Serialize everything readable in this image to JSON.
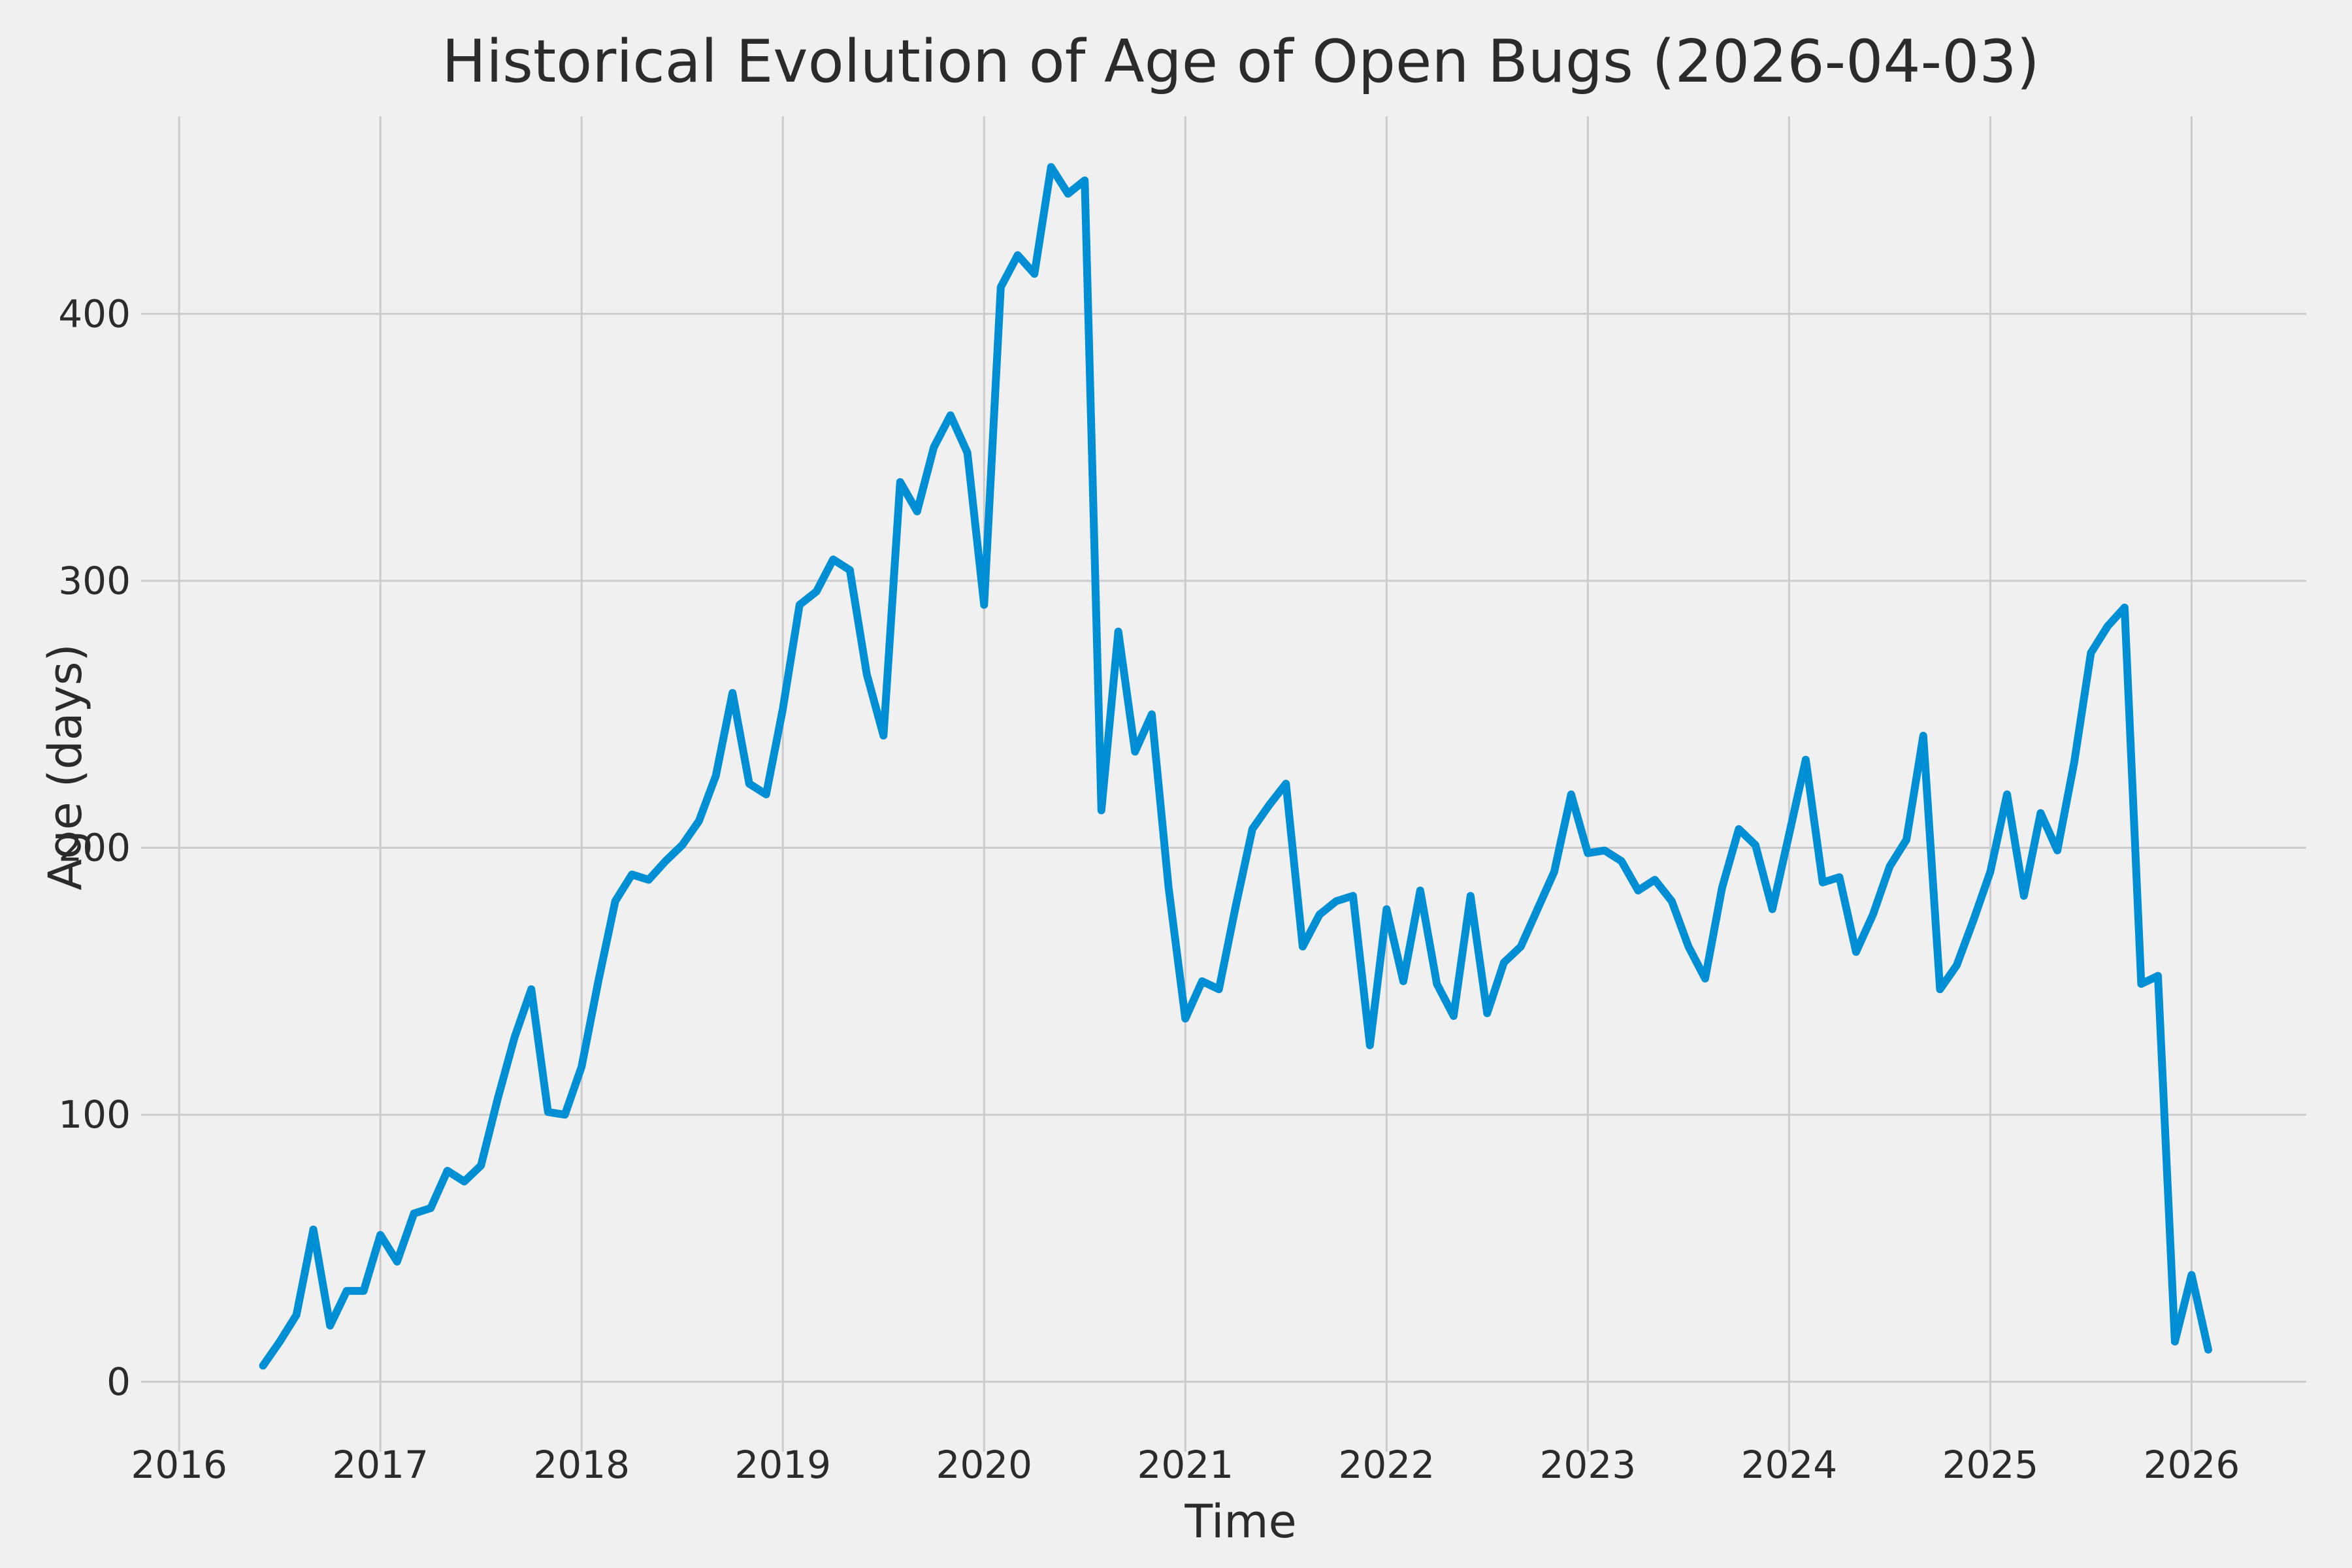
{
  "chart_data": {
    "type": "line",
    "title": "Historical Evolution of Age of Open Bugs (2026-04-03)",
    "xlabel": "Time",
    "ylabel": "Age (days)",
    "x_ticks": [
      2016,
      2017,
      2018,
      2019,
      2020,
      2021,
      2022,
      2023,
      2024,
      2025,
      2026
    ],
    "y_ticks": [
      0,
      100,
      200,
      300,
      400
    ],
    "xlim": [
      2015.98,
      2026.57
    ],
    "ylim": [
      -13.5,
      474
    ],
    "grid": true,
    "legend_position": "none",
    "colors": {
      "line": "#008fd5",
      "background": "#f0f0f0",
      "grid": "#cbcbcb",
      "text": "#2b2b2b"
    },
    "series": [
      {
        "name": "Age (days)",
        "x": [
          2016.417,
          2016.5,
          2016.583,
          2016.667,
          2016.75,
          2016.833,
          2016.917,
          2017.0,
          2017.083,
          2017.167,
          2017.25,
          2017.333,
          2017.417,
          2017.5,
          2017.583,
          2017.667,
          2017.75,
          2017.833,
          2017.917,
          2018.0,
          2018.083,
          2018.167,
          2018.25,
          2018.333,
          2018.417,
          2018.5,
          2018.583,
          2018.667,
          2018.75,
          2018.833,
          2018.917,
          2019.0,
          2019.083,
          2019.167,
          2019.25,
          2019.333,
          2019.417,
          2019.5,
          2019.583,
          2019.667,
          2019.75,
          2019.833,
          2019.917,
          2020.0,
          2020.083,
          2020.167,
          2020.25,
          2020.333,
          2020.417,
          2020.5,
          2020.583,
          2020.667,
          2020.75,
          2020.833,
          2020.917,
          2021.0,
          2021.083,
          2021.167,
          2021.25,
          2021.333,
          2021.417,
          2021.5,
          2021.583,
          2021.667,
          2021.75,
          2021.833,
          2021.917,
          2022.0,
          2022.083,
          2022.167,
          2022.25,
          2022.333,
          2022.417,
          2022.5,
          2022.583,
          2022.667,
          2022.75,
          2022.833,
          2022.917,
          2023.0,
          2023.083,
          2023.167,
          2023.25,
          2023.333,
          2023.417,
          2023.5,
          2023.583,
          2023.667,
          2023.75,
          2023.833,
          2023.917,
          2024.0,
          2024.083,
          2024.167,
          2024.25,
          2024.333,
          2024.417,
          2024.5,
          2024.583,
          2024.667,
          2024.75,
          2024.833,
          2024.917,
          2025.0,
          2025.083,
          2025.167,
          2025.25,
          2025.333,
          2025.417,
          2025.5,
          2025.583,
          2025.667,
          2025.75,
          2025.833,
          2025.917,
          2026.0,
          2026.083
        ],
        "y": [
          6,
          15,
          25,
          57,
          21,
          34,
          34,
          55,
          45,
          63,
          65,
          79,
          75,
          81,
          106,
          129,
          147,
          101,
          100,
          118,
          150,
          180,
          190,
          188,
          195,
          201,
          210,
          227,
          258,
          224,
          220,
          252,
          291,
          296,
          308,
          304,
          265,
          242,
          337,
          326,
          350,
          362,
          348,
          291,
          410,
          422,
          415,
          455,
          445,
          450,
          214,
          281,
          236,
          250,
          185,
          136,
          150,
          147,
          178,
          207,
          216,
          224,
          163,
          175,
          180,
          182,
          126,
          177,
          150,
          184,
          149,
          137,
          182,
          138,
          157,
          163,
          177,
          191,
          220,
          198,
          199,
          195,
          184,
          188,
          180,
          163,
          151,
          185,
          207,
          201,
          177,
          205,
          233,
          187,
          189,
          161,
          175,
          193,
          203,
          242,
          147,
          156,
          173,
          191,
          220,
          182,
          213,
          199,
          232,
          273,
          283,
          290,
          149,
          152,
          15,
          40,
          12
        ]
      }
    ]
  }
}
